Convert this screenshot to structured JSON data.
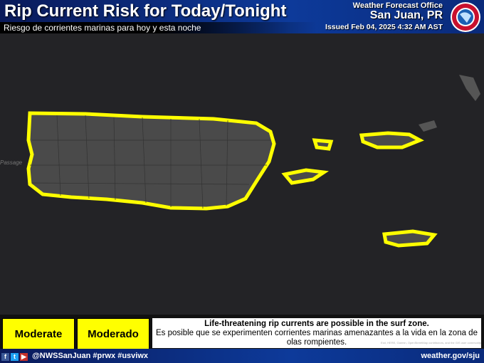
{
  "header": {
    "title": "Rip Current Risk for Today/Tonight",
    "subtitle": "Riesgo de corrientes marinas para hoy y esta noche",
    "office_label": "Weather Forecast Office",
    "office": "San Juan, PR",
    "issued": "Issued Feb 04, 2025 4:32 AM AST",
    "logo_text": "NATIONAL WEATHER SERVICE"
  },
  "map": {
    "label_passage": "Passage",
    "risk_color": "#ffff00",
    "land_color": "#4a4a4a",
    "water_color": "#232326"
  },
  "legend": {
    "risk_en": "Moderate",
    "risk_es": "Moderado",
    "message_en": "Life-threatening rip currents are possible in the surf zone.",
    "message_es": "Es posible que se experimenten corrientes marinas amenazantes a la vida en la zona de olas rompientes.",
    "attribution": "Esri, HERE, Garmin, OpenStreetMap contributors, and the GIS user community"
  },
  "footer": {
    "icons": [
      "facebook-icon",
      "twitter-icon",
      "youtube-icon"
    ],
    "handle": "@NWSSanJuan #prwx #usviwx",
    "website": "weather.gov/sju"
  }
}
